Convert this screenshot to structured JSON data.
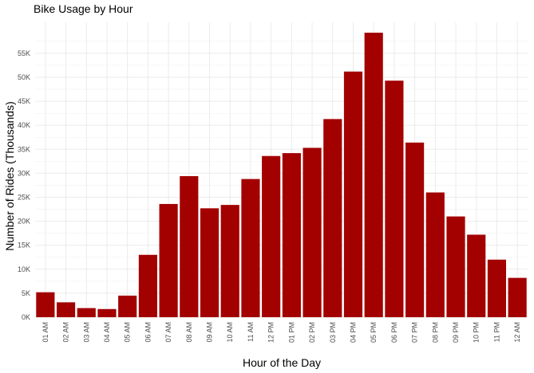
{
  "chart_data": {
    "type": "bar",
    "title": "Bike Usage by Hour",
    "xlabel": "Hour of the Day",
    "ylabel": "Number of Rides (Thousands)",
    "categories": [
      "01 AM",
      "02 AM",
      "03 AM",
      "04 AM",
      "05 AM",
      "06 AM",
      "07 AM",
      "08 AM",
      "09 AM",
      "10 AM",
      "11 AM",
      "12 PM",
      "01 PM",
      "02 PM",
      "03 PM",
      "04 PM",
      "05 PM",
      "06 PM",
      "07 PM",
      "08 PM",
      "09 PM",
      "10 PM",
      "11 PM",
      "12 AM"
    ],
    "values": [
      5200,
      3100,
      1900,
      1700,
      4500,
      13000,
      23600,
      29400,
      22700,
      23400,
      28800,
      33600,
      34200,
      35300,
      41300,
      51200,
      59300,
      49300,
      36400,
      26000,
      21000,
      17200,
      12000,
      8200
    ],
    "yticks": [
      0,
      5000,
      10000,
      15000,
      20000,
      25000,
      30000,
      35000,
      40000,
      45000,
      50000,
      55000
    ],
    "ytick_labels": [
      "0K",
      "5K",
      "10K",
      "15K",
      "20K",
      "25K",
      "30K",
      "35K",
      "40K",
      "45K",
      "50K",
      "55K"
    ],
    "ylim": [
      0,
      60000
    ],
    "bar_color": "#a30000",
    "grid": true,
    "legend": "none"
  }
}
